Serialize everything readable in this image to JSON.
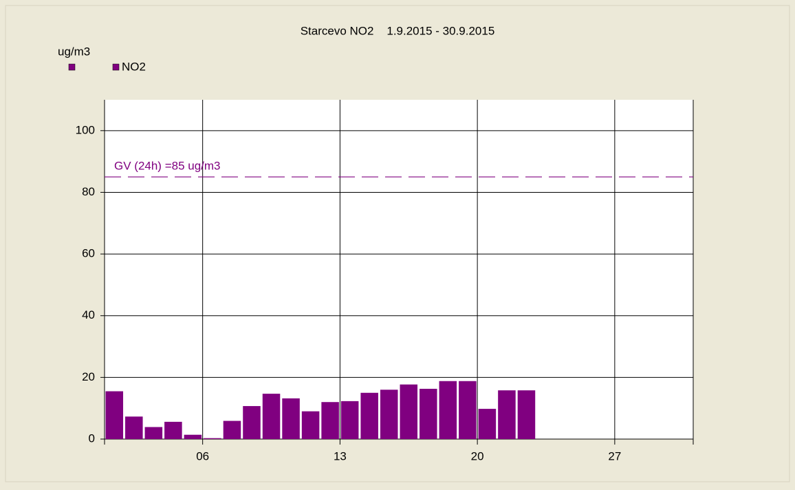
{
  "chart_data": {
    "type": "bar",
    "title": "Starcevo NO2    1.9.2015 - 30.9.2015",
    "y_label": "ug/m3",
    "x": [
      1,
      2,
      3,
      4,
      5,
      6,
      7,
      8,
      9,
      10,
      11,
      12,
      13,
      14,
      15,
      16,
      17,
      18,
      19,
      20,
      21,
      22
    ],
    "series": [
      {
        "name": "NO2",
        "color": "#800080",
        "values": [
          15.5,
          7.3,
          3.9,
          5.6,
          1.4,
          0.3,
          5.9,
          10.7,
          14.7,
          13.2,
          9.0,
          12.0,
          12.3,
          15.0,
          16.0,
          17.7,
          16.3,
          18.8,
          18.8,
          9.8,
          15.8,
          15.8
        ]
      }
    ],
    "xlim": [
      1,
      31
    ],
    "xticks": [
      {
        "value": 6,
        "label": "06"
      },
      {
        "value": 13,
        "label": "13"
      },
      {
        "value": 20,
        "label": "20"
      },
      {
        "value": 27,
        "label": "27"
      }
    ],
    "ylim": [
      0,
      110
    ],
    "yticks": [
      0,
      20,
      40,
      60,
      80,
      100
    ],
    "grid": true,
    "reference_line": {
      "value": 85,
      "label": "GV (24h) =85 ug/m3",
      "color": "#800080"
    }
  }
}
